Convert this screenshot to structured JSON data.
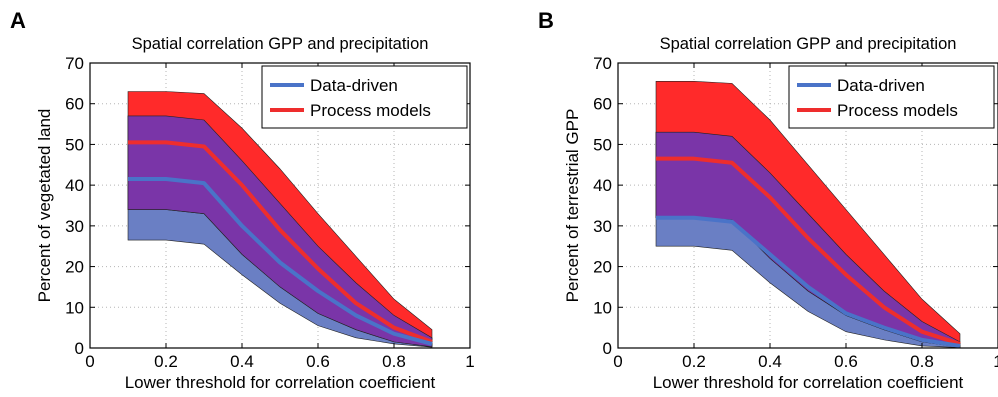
{
  "colors": {
    "data_driven_band": "#6a7fc4",
    "process_band": "#ff2a2a",
    "overlap_band": "#7a35a8",
    "data_driven_line": "#4a73c8",
    "process_line": "#ee2d2d",
    "grid": "#b5b5b5"
  },
  "chart_data": [
    {
      "panel": "A",
      "type": "area",
      "title": "Spatial correlation GPP and precipitation",
      "xlabel": "Lower threshold for correlation coefficient",
      "ylabel": "Percent of vegetated land",
      "xlim": [
        0,
        1
      ],
      "ylim": [
        0,
        70
      ],
      "xticks": [
        "0",
        "0.2",
        "0.4",
        "0.6",
        "0.8",
        "1"
      ],
      "yticks": [
        "0",
        "10",
        "20",
        "30",
        "40",
        "50",
        "60",
        "70"
      ],
      "grid": true,
      "legend_position": "top-right",
      "x": [
        0.1,
        0.2,
        0.3,
        0.4,
        0.5,
        0.6,
        0.7,
        0.8,
        0.9
      ],
      "series": [
        {
          "name": "Data-driven",
          "line": [
            41.5,
            41.5,
            40.5,
            30,
            21,
            14,
            8,
            3.5,
            1
          ],
          "upper": [
            57,
            57,
            56,
            46,
            35.5,
            25,
            16,
            8,
            2.5
          ],
          "lower": [
            26.5,
            26.5,
            25.5,
            18,
            11,
            5.5,
            2.5,
            1,
            0.2
          ]
        },
        {
          "name": "Process models",
          "line": [
            50.5,
            50.5,
            49.5,
            40,
            29,
            19.5,
            11,
            5,
            1.5
          ],
          "upper": [
            63,
            63,
            62.5,
            54,
            44,
            33,
            22.5,
            12,
            4.5
          ],
          "lower": [
            34,
            34,
            33,
            23,
            15,
            8.5,
            4.5,
            1.5,
            0.3
          ]
        }
      ]
    },
    {
      "panel": "B",
      "type": "area",
      "title": "Spatial correlation GPP and precipitation",
      "xlabel": "Lower threshold for correlation coefficient",
      "ylabel": "Percent of terrestrial GPP",
      "xlim": [
        0,
        1
      ],
      "ylim": [
        0,
        70
      ],
      "xticks": [
        "0",
        "0.2",
        "0.4",
        "0.6",
        "0.8",
        "1"
      ],
      "yticks": [
        "0",
        "10",
        "20",
        "30",
        "40",
        "50",
        "60",
        "70"
      ],
      "grid": true,
      "legend_position": "top-right",
      "x": [
        0.1,
        0.2,
        0.3,
        0.4,
        0.5,
        0.6,
        0.7,
        0.8,
        0.9
      ],
      "series": [
        {
          "name": "Data-driven",
          "line": [
            32,
            32,
            31,
            23,
            15,
            8.5,
            5,
            2,
            0.5
          ],
          "upper": [
            53,
            53,
            52,
            43,
            33,
            23,
            14,
            6.5,
            1.5
          ],
          "lower": [
            25,
            25,
            24,
            16,
            9,
            4,
            2,
            0.5,
            0.1
          ]
        },
        {
          "name": "Process models",
          "line": [
            46.5,
            46.5,
            45.5,
            37,
            27,
            18,
            10,
            4,
            1
          ],
          "upper": [
            65.5,
            65.5,
            65,
            56,
            45,
            34,
            23,
            12,
            3.5
          ],
          "lower": [
            32,
            32,
            31.5,
            22,
            14,
            8,
            4.5,
            1.5,
            0.2
          ]
        }
      ]
    }
  ]
}
